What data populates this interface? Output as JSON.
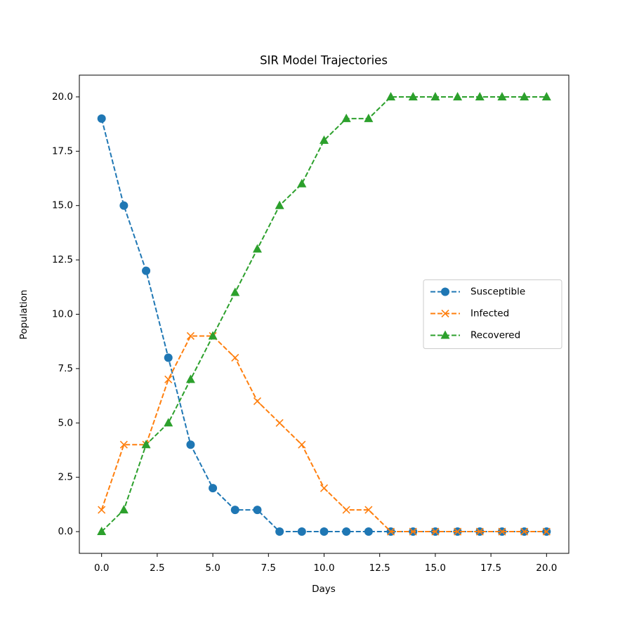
{
  "chart_data": {
    "type": "line",
    "title": "SIR Model Trajectories",
    "x_label": "Days",
    "y_label": "Population",
    "x": [
      0,
      1,
      2,
      3,
      4,
      5,
      6,
      7,
      8,
      9,
      10,
      11,
      12,
      13,
      14,
      15,
      16,
      17,
      18,
      19,
      20
    ],
    "series": [
      {
        "name": "Susceptible",
        "color": "#1f77b4",
        "marker": "circle",
        "values": [
          19,
          15,
          12,
          8,
          4,
          2,
          1,
          1,
          0,
          0,
          0,
          0,
          0,
          0,
          0,
          0,
          0,
          0,
          0,
          0,
          0
        ]
      },
      {
        "name": "Infected",
        "color": "#ff7f0e",
        "marker": "x",
        "values": [
          1,
          4,
          4,
          7,
          9,
          9,
          8,
          6,
          5,
          4,
          2,
          1,
          1,
          0,
          0,
          0,
          0,
          0,
          0,
          0,
          0
        ]
      },
      {
        "name": "Recovered",
        "color": "#2ca02c",
        "marker": "triangle",
        "values": [
          0,
          1,
          4,
          5,
          7,
          9,
          11,
          13,
          15,
          16,
          18,
          19,
          19,
          20,
          20,
          20,
          20,
          20,
          20,
          20,
          20
        ]
      }
    ],
    "line_style": "dashed",
    "xlim": [
      -1,
      21
    ],
    "ylim": [
      -1,
      21
    ],
    "xticks": [
      {
        "value": 0,
        "label": "0.0"
      },
      {
        "value": 2.5,
        "label": "2.5"
      },
      {
        "value": 5,
        "label": "5.0"
      },
      {
        "value": 7.5,
        "label": "7.5"
      },
      {
        "value": 10,
        "label": "10.0"
      },
      {
        "value": 12.5,
        "label": "12.5"
      },
      {
        "value": 15,
        "label": "15.0"
      },
      {
        "value": 17.5,
        "label": "17.5"
      },
      {
        "value": 20,
        "label": "20.0"
      }
    ],
    "yticks": [
      {
        "value": 0,
        "label": "0.0"
      },
      {
        "value": 2.5,
        "label": "2.5"
      },
      {
        "value": 5,
        "label": "5.0"
      },
      {
        "value": 7.5,
        "label": "7.5"
      },
      {
        "value": 10,
        "label": "10.0"
      },
      {
        "value": 12.5,
        "label": "12.5"
      },
      {
        "value": 15,
        "label": "15.0"
      },
      {
        "value": 17.5,
        "label": "17.5"
      },
      {
        "value": 20,
        "label": "20.0"
      }
    ],
    "grid": false,
    "legend_position": "center right"
  }
}
